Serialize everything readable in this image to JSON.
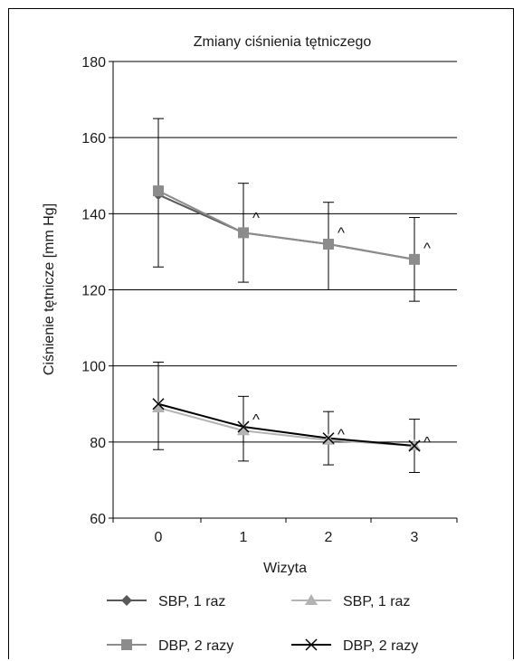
{
  "chart_data": {
    "type": "line",
    "title": "Zmiany ciśnienia tętniczego",
    "xlabel": "Wizyta",
    "ylabel": "Ciśnienie tętnicze [mm Hg]",
    "categories": [
      "0",
      "1",
      "2",
      "3"
    ],
    "ylim": [
      60,
      180
    ],
    "yticks": [
      60,
      80,
      100,
      120,
      140,
      160,
      180
    ],
    "grid": "horizontal",
    "legend_position": "bottom",
    "marker_label": "^",
    "series": [
      {
        "name": "SBP, 1 raz",
        "marker": "diamond",
        "color": "#595959",
        "values": [
          145,
          135,
          132,
          128
        ]
      },
      {
        "name": "SBP, 1 raz",
        "marker": "triangle",
        "color": "#b3b3b3",
        "values": [
          89,
          83,
          80.5,
          79
        ]
      },
      {
        "name": "DBP, 2 razy",
        "marker": "square",
        "color": "#8c8c8c",
        "values": [
          146,
          135,
          132,
          128
        ]
      },
      {
        "name": "DBP, 2 razy",
        "marker": "x",
        "color": "#000000",
        "values": [
          90,
          84,
          81,
          79
        ]
      }
    ],
    "error_bars": [
      {
        "group": "upper",
        "low": [
          126,
          122,
          120,
          117
        ],
        "high": [
          165,
          148,
          143,
          139
        ]
      },
      {
        "group": "lower",
        "low": [
          78,
          75,
          74,
          72
        ],
        "high": [
          101,
          92,
          88,
          86
        ]
      }
    ],
    "annotations": [
      {
        "text": "^",
        "x": "1",
        "y": 140
      },
      {
        "text": "^",
        "x": "2",
        "y": 136
      },
      {
        "text": "^",
        "x": "3",
        "y": 132
      },
      {
        "text": "^",
        "x": "1",
        "y": 87
      },
      {
        "text": "^",
        "x": "2",
        "y": 83
      },
      {
        "text": "^",
        "x": "3",
        "y": 81
      }
    ]
  }
}
